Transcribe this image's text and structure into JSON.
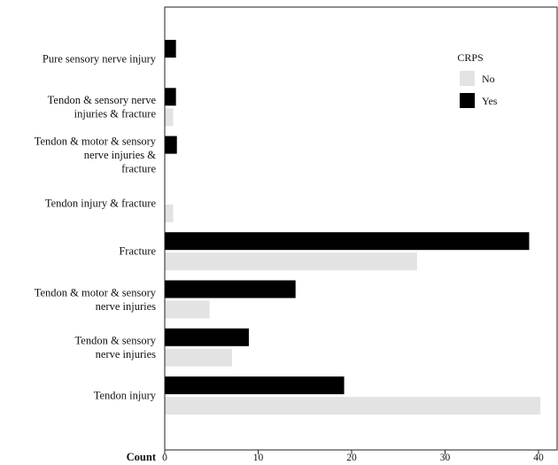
{
  "chart_data": {
    "type": "bar",
    "orientation": "horizontal",
    "categories": [
      [
        "Pure sensory nerve injury"
      ],
      [
        "Tendon & sensory nerve",
        "injuries & fracture"
      ],
      [
        "Tendon & motor & sensory",
        "nerve injuries &",
        "fracture"
      ],
      [
        "Tendon injury & fracture"
      ],
      [
        "Fracture"
      ],
      [
        "Tendon & motor & sensory",
        "nerve injuries"
      ],
      [
        "Tendon & sensory",
        "nerve injuries"
      ],
      [
        "Tendon injury"
      ]
    ],
    "series": [
      {
        "name": "Yes",
        "color": "#000000",
        "values": [
          1.2,
          1.2,
          1.3,
          0,
          39,
          14,
          9,
          19.2
        ]
      },
      {
        "name": "No",
        "color": "#e3e3e3",
        "values": [
          0,
          0.9,
          0,
          0.9,
          27,
          4.8,
          7.2,
          40.2
        ]
      }
    ],
    "legend": {
      "title": "CRPS",
      "entries": [
        "No",
        "Yes"
      ],
      "entry_colors": [
        "#e3e3e3",
        "#000000"
      ],
      "position": "top-right"
    },
    "xlabel": "Count",
    "xlim": [
      0,
      42
    ],
    "xticks": [
      0,
      10,
      20,
      30,
      40
    ],
    "grid": false
  }
}
